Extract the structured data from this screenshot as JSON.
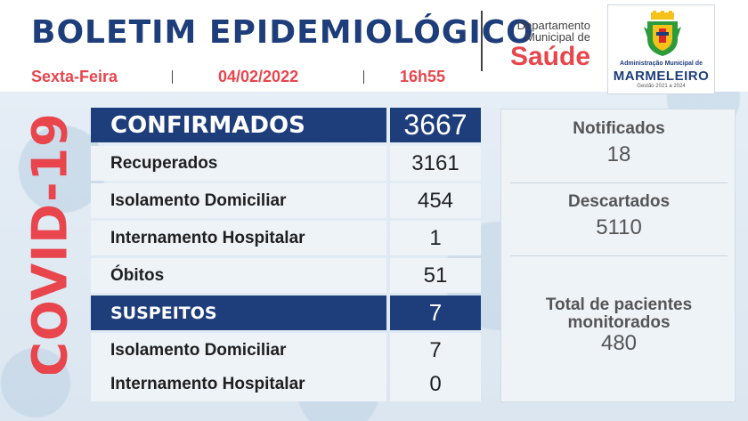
{
  "header": {
    "title": "BOLETIM EPIDEMIOLÓGICO",
    "weekday": "Sexta-Feira",
    "date": "04/02/2022",
    "time": "16h55",
    "department_line1": "Departamento",
    "department_line2": "Municipal de",
    "department_big": "Saúde"
  },
  "logo": {
    "line1": "Administração Municipal de",
    "line2": "MARMELEIRO",
    "line3": "Gestão 2021 a 2024",
    "colors": {
      "green": "#2e9b3b",
      "yellow": "#f4c21a",
      "red": "#d7262e",
      "blue": "#1e3d7b"
    }
  },
  "side_label": "COVID-19",
  "colors": {
    "accent_red": "#e8454d",
    "navy": "#1e3d7b"
  },
  "table": {
    "rows": [
      {
        "label": "CONFIRMADOS",
        "value": "3667",
        "style": "head"
      },
      {
        "label": "Recuperados",
        "value": "3161",
        "style": "plain"
      },
      {
        "label": "Isolamento Domiciliar",
        "value": "454",
        "style": "plain"
      },
      {
        "label": "Internamento Hospitalar",
        "value": "1",
        "style": "plain"
      },
      {
        "label": "Óbitos",
        "value": "51",
        "style": "plain"
      },
      {
        "label": "SUSPEITOS",
        "value": "7",
        "style": "subhead"
      },
      {
        "label": "Isolamento Domiciliar",
        "value": "7",
        "style": "plain"
      },
      {
        "label": "Internamento Hospitalar",
        "value": "0",
        "style": "plain"
      }
    ]
  },
  "stats": {
    "notificados_label": "Notificados",
    "notificados_value": "18",
    "descartados_label": "Descartados",
    "descartados_value": "5110",
    "monitorados_label_1": "Total de pacientes",
    "monitorados_label_2": "monitorados",
    "monitorados_value": "480"
  }
}
